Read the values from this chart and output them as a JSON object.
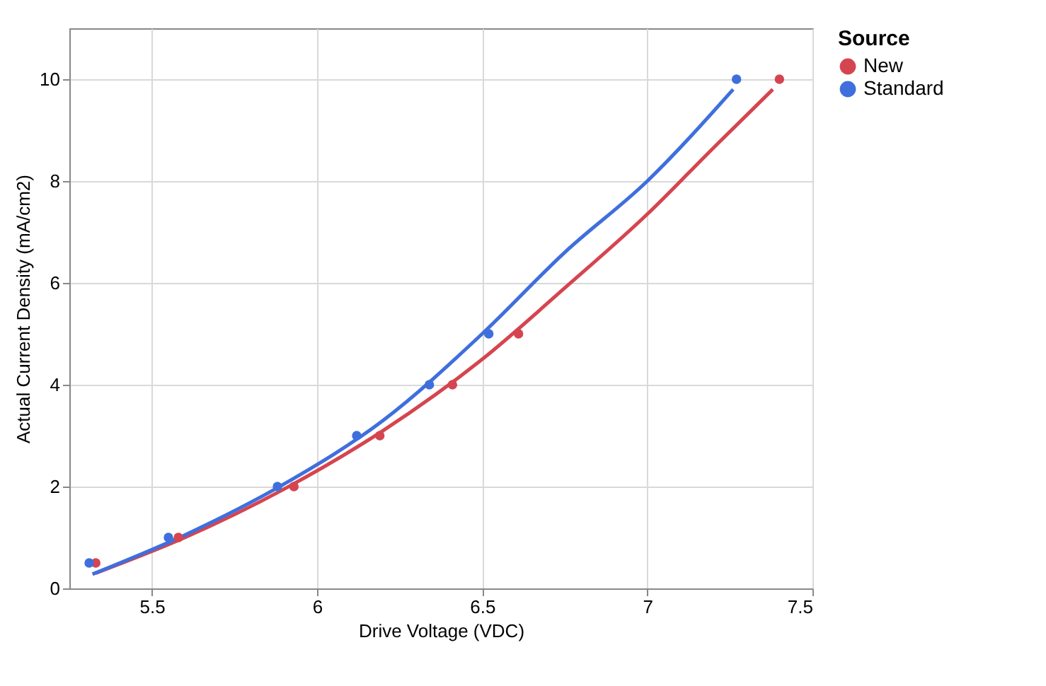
{
  "chart_data": {
    "type": "scatter",
    "xlabel": "Drive Voltage (VDC)",
    "ylabel": "Actual Current Density (mA/cm2)",
    "legend_title": "Source",
    "legend": "top right",
    "grid": true,
    "marker": "circle",
    "xlim": [
      5.25,
      7.5
    ],
    "xticks": [
      5.5,
      6,
      6.5,
      7,
      7.5
    ],
    "ylim": [
      0,
      11
    ],
    "yticks": [
      0,
      2,
      4,
      6,
      8,
      10
    ],
    "series": [
      {
        "name": "New",
        "color": "#d5454f",
        "x": [
          5.33,
          5.58,
          5.93,
          6.19,
          6.41,
          6.61,
          7.4
        ],
        "values": [
          0.5,
          1,
          2,
          3,
          4,
          5,
          10
        ]
      },
      {
        "name": "Standard",
        "color": "#3f6fdd",
        "x": [
          5.31,
          5.55,
          5.88,
          6.12,
          6.34,
          6.52,
          7.27
        ],
        "values": [
          0.5,
          1,
          2,
          3,
          4,
          5,
          10
        ]
      },
      {
        "type": "line",
        "marker": "none",
        "color": "#d5454f",
        "x": [
          5.33,
          5.6,
          5.9,
          6.2,
          6.5,
          6.75,
          7.0,
          7.2,
          7.38
        ],
        "values": [
          0.3,
          1.0,
          1.95,
          3.1,
          4.5,
          5.9,
          7.35,
          8.65,
          9.8
        ]
      },
      {
        "type": "line",
        "marker": "none",
        "color": "#3f6fdd",
        "x": [
          5.32,
          5.6,
          5.9,
          6.2,
          6.5,
          6.75,
          7.0,
          7.26
        ],
        "values": [
          0.28,
          1.05,
          2.05,
          3.3,
          5.0,
          6.6,
          8.0,
          9.8
        ]
      }
    ]
  }
}
